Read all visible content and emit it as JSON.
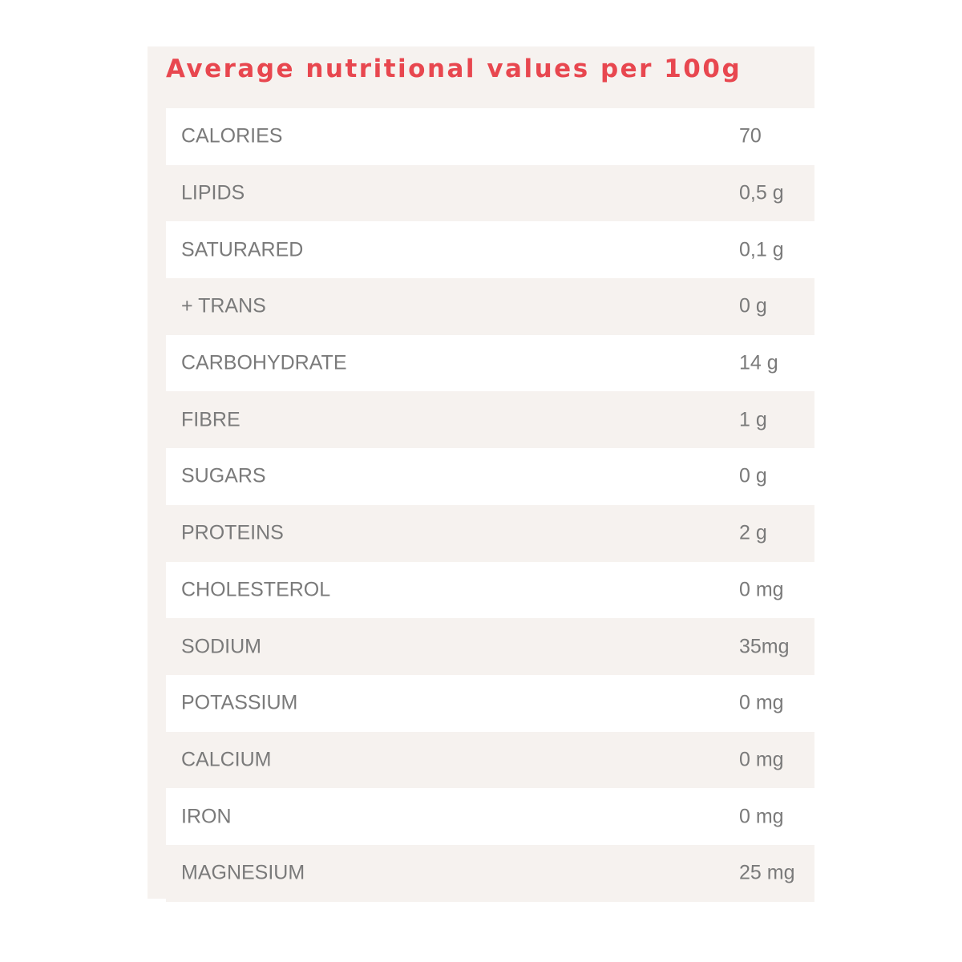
{
  "title": "Average nutritional values per 100g",
  "colors": {
    "title": "#e8474f",
    "panel_background": "#f6f2ef",
    "row_alt_background": "#ffffff",
    "text": "#7a7a7a"
  },
  "rows": [
    {
      "label": "CALORIES",
      "value": "70"
    },
    {
      "label": "LIPIDS",
      "value": "0,5 g"
    },
    {
      "label": "SATURARED",
      "value": "0,1 g"
    },
    {
      "label": "+ TRANS",
      "value": "0 g"
    },
    {
      "label": "CARBOHYDRATE",
      "value": "14 g"
    },
    {
      "label": "FIBRE",
      "value": "1 g"
    },
    {
      "label": "SUGARS",
      "value": "0 g"
    },
    {
      "label": "PROTEINS",
      "value": "2 g"
    },
    {
      "label": "CHOLESTEROL",
      "value": "0 mg"
    },
    {
      "label": "SODIUM",
      "value": "35mg"
    },
    {
      "label": "POTASSIUM",
      "value": "0 mg"
    },
    {
      "label": "CALCIUM",
      "value": "0 mg"
    },
    {
      "label": "IRON",
      "value": "0 mg"
    },
    {
      "label": "MAGNESIUM",
      "value": "25 mg"
    }
  ]
}
